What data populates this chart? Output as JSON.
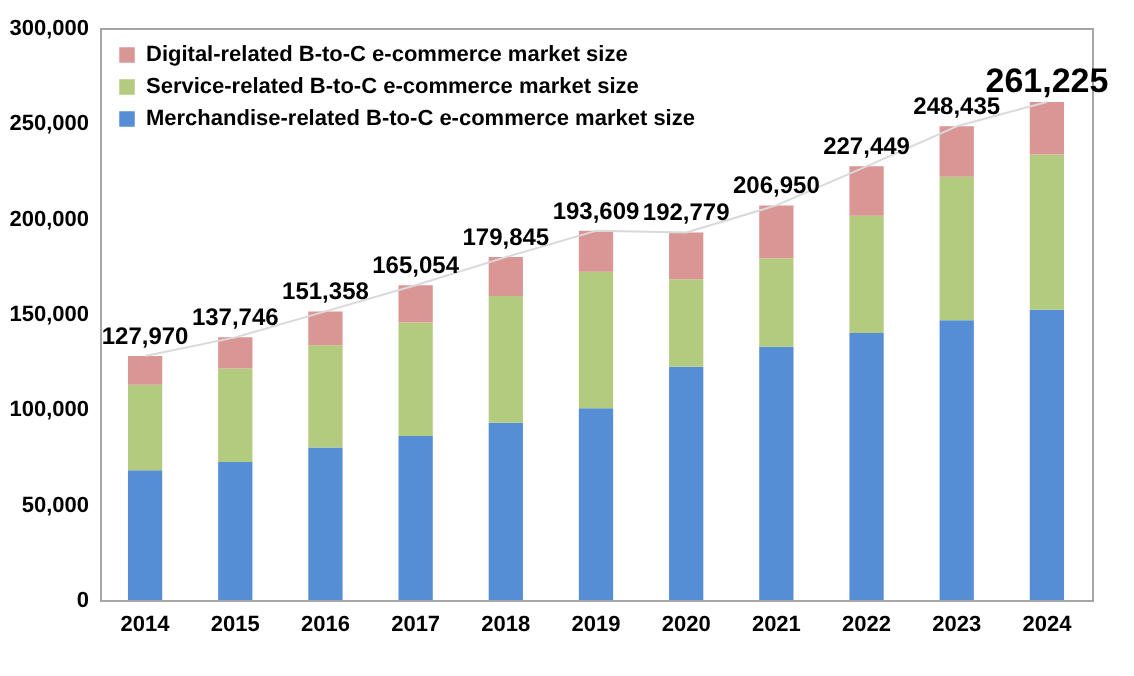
{
  "chart_data": {
    "type": "bar",
    "stacked": true,
    "categories": [
      "2014",
      "2015",
      "2016",
      "2017",
      "2018",
      "2019",
      "2020",
      "2021",
      "2022",
      "2023",
      "2024"
    ],
    "series": [
      {
        "name": "Merchandise-related B-to-C e-commerce market size",
        "color": "#558ed5",
        "values": [
          68043,
          72398,
          80043,
          86008,
          92992,
          100515,
          122333,
          132865,
          139997,
          146760,
          152194
        ]
      },
      {
        "name": "Service-related B-to-C e-commerce market size",
        "color": "#b3cb7f",
        "values": [
          44816,
          49014,
          53532,
          59568,
          66471,
          71672,
          45832,
          46424,
          61477,
          75169,
          81522
        ]
      },
      {
        "name": "Digital-related B-to-C e-commerce market size",
        "color": "#d99694",
        "values": [
          15111,
          16334,
          17783,
          19478,
          20382,
          21422,
          24614,
          27661,
          25975,
          26506,
          27509
        ]
      },
      {
        "type": "line",
        "color": "#d9d9d9",
        "values": [
          127970,
          137746,
          151358,
          165054,
          179845,
          193609,
          192779,
          206950,
          227449,
          248435,
          261225
        ]
      }
    ],
    "totals": [
      "127,970",
      "137,746",
      "151,358",
      "165,054",
      "179,845",
      "193,609",
      "192,779",
      "206,950",
      "227,449",
      "248,435",
      "261,225"
    ],
    "ylim": [
      0,
      300000
    ],
    "yticks": [
      0,
      {
        "value": 50000,
        "label": "50,000"
      },
      {
        "value": 100000,
        "label": "100,000"
      },
      {
        "value": 150000,
        "label": "150,000"
      },
      {
        "value": 200000,
        "label": "200,000"
      },
      {
        "value": 250000,
        "label": "250,000"
      },
      {
        "value": 300000,
        "label": "300,000"
      }
    ],
    "grid": false,
    "legend": "top left"
  }
}
